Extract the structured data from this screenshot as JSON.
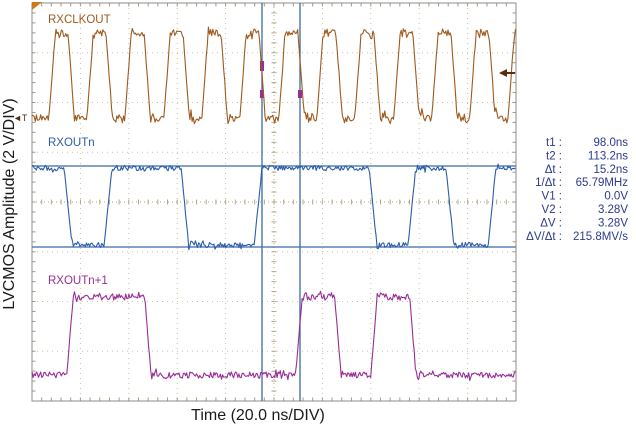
{
  "chart_data": {
    "type": "line",
    "subtype": "oscilloscope",
    "xlabel": "Time (20.0 ns/DIV)",
    "ylabel": "LVCMOS Amplitude (2 V/DIV)",
    "x_range_ns": [
      0,
      200
    ],
    "time_per_div_ns": 20.0,
    "volts_per_div": 2.0,
    "h_divisions": 10,
    "v_divisions": 8,
    "grid": "dotted-graticule",
    "series": [
      {
        "name": "RXCLKOUT",
        "color": "#9e5a1e",
        "signal": "clock",
        "low_V": 0.0,
        "high_V": 3.3,
        "initial_level": "low",
        "edges_ns": [
          8.3,
          16.2,
          24.0,
          31.9,
          39.7,
          47.6,
          55.8,
          63.7,
          71.5,
          79.4,
          87.2,
          95.1,
          103.3,
          111.2,
          119.0,
          126.9,
          134.7,
          142.6,
          150.8,
          158.7,
          166.5,
          174.4,
          182.2,
          190.1,
          198.0
        ]
      },
      {
        "name": "RXOUTn",
        "color": "#2b5cac",
        "signal": "data",
        "low_V": 0.0,
        "high_V": 3.28,
        "initial_level": "high",
        "edges_ns": [
          14.9,
          31.4,
          63.2,
          93.4,
          140.9,
          157.0,
          172.7,
          190.1
        ]
      },
      {
        "name": "RXOUTn+1",
        "color": "#982d98",
        "signal": "data",
        "low_V": 0.0,
        "high_V": 3.3,
        "initial_level": "low",
        "edges_ns": [
          15.7,
          47.9,
          110.3,
          126.4,
          141.3,
          157.4
        ]
      }
    ],
    "cursors": {
      "t1_ns": 98.0,
      "t2_ns": 113.2,
      "v1_V": 0.0,
      "v2_V": 3.28,
      "color": "#3a6ba2"
    }
  },
  "measurements": {
    "text_color": "#2c3a8c",
    "rows": [
      {
        "label": "t1 :",
        "value": "98.0ns"
      },
      {
        "label": "t2 :",
        "value": "113.2ns"
      },
      {
        "label": "Δt :",
        "value": "15.2ns"
      },
      {
        "label": "1/Δt :",
        "value": "65.79MHz"
      },
      {
        "label": "V1 :",
        "value": "0.0V"
      },
      {
        "label": "V2 :",
        "value": "3.28V"
      },
      {
        "label": "ΔV :",
        "value": "3.28V"
      },
      {
        "label": "ΔV/Δt :",
        "value": "215.8MV/s"
      }
    ]
  },
  "markers": {
    "trigger_level_label": "◄T",
    "trigger_level_color": "#473018",
    "trigger_position_color": "#d07818",
    "trigger_arrow_color": "#5c2c0c"
  },
  "graticule_colors": {
    "grid": "#cfc2a2",
    "center_cross": "#b5a683",
    "border_ticks": "#a89a7c",
    "border": "#8d8d8d"
  },
  "axis_text_color": "#1a1a1a"
}
